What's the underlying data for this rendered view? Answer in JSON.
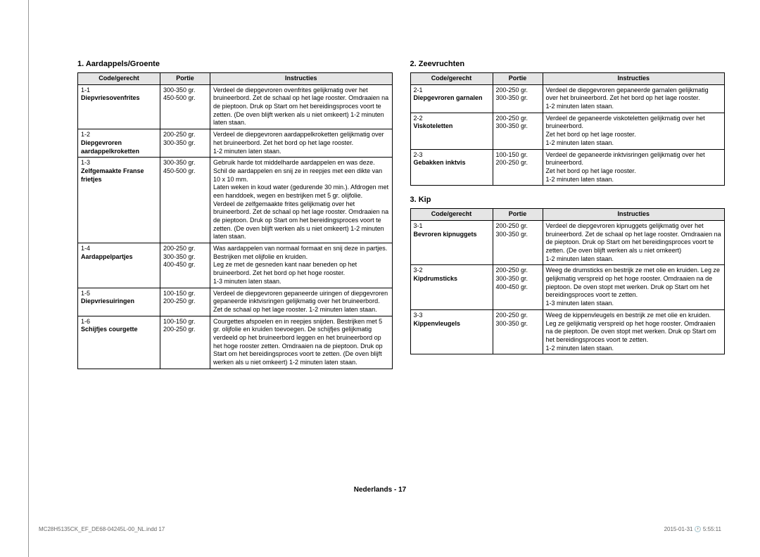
{
  "left": {
    "title": "1. Aardappels/Groente",
    "headers": {
      "c": "Code/gerecht",
      "p": "Portie",
      "i": "Instructies"
    },
    "rows": [
      {
        "code": "1-1",
        "name": "Diepvriesovenfrites",
        "portie": "300-350 gr.\n450-500 gr.",
        "instr": "Verdeel de diepgevroren ovenfrites gelijkmatig over het bruineerbord. Zet de schaal op het lage rooster. Omdraaien na de pieptoon. Druk op Start om het bereidingsproces voort te zetten. (De oven blijft werken als u niet omkeert) 1-2 minuten laten staan."
      },
      {
        "code": "1-2",
        "name": "Diepgevroren aardappelkroketten",
        "portie": "200-250 gr.\n300-350 gr.",
        "instr": "Verdeel de diepgevroren aardappelkroketten gelijkmatig over het bruineerbord. Zet het bord op het lage rooster.\n1-2 minuten laten staan."
      },
      {
        "code": "1-3",
        "name": "Zelfgemaakte Franse frietjes",
        "portie": "300-350 gr.\n450-500 gr.",
        "instr": "Gebruik harde tot middelharde aardappelen en was deze. Schil de aardappelen en snij ze in reepjes met een dikte van 10 x 10 mm.\nLaten weken in koud water (gedurende 30 min.). Afdrogen met een handdoek, wegen en bestrijken met 5 gr. olijfolie.\nVerdeel de zelfgemaakte frites gelijkmatig over het bruineerbord. Zet de schaal op het lage rooster. Omdraaien na de pieptoon. Druk op Start om het bereidingsproces voort te zetten. (De oven blijft werken als u niet omkeert) 1-2 minuten laten staan."
      },
      {
        "code": "1-4",
        "name": "Aardappelpartjes",
        "portie": "200-250 gr.\n300-350 gr.\n400-450 gr.",
        "instr": "Was aardappelen van normaal formaat en snij deze in partjes. Bestrijken met olijfolie en kruiden.\nLeg ze met de gesneden kant naar beneden op het bruineerbord. Zet het bord op het hoge rooster.\n1-3 minuten laten staan."
      },
      {
        "code": "1-5",
        "name": "Diepvriesuiringen",
        "portie": "100-150 gr.\n200-250 gr.",
        "instr": "Verdeel de diepgevroren gepaneerde uiringen of diepgevroren gepaneerde inktvisringen gelijkmatig over het bruineerbord. Zet de schaal op het lage rooster. 1-2 minuten laten staan."
      },
      {
        "code": "1-6",
        "name": "Schijfjes courgette",
        "portie": "100-150 gr.\n200-250 gr.",
        "instr": "Courgettes afspoelen en in reepjes snijden. Bestrijken met 5 gr. olijfolie en kruiden toevoegen. De schijfjes gelijkmatig verdeeld op het bruineerbord leggen en het bruineerbord op het hoge rooster zetten. Omdraaien na de pieptoon. Druk op Start om het bereidingsproces voort te zetten. (De oven blijft werken als u niet omkeert) 1-2 minuten laten staan."
      }
    ]
  },
  "right": {
    "s2": {
      "title": "2. Zeevruchten",
      "headers": {
        "c": "Code/gerecht",
        "p": "Portie",
        "i": "Instructies"
      },
      "rows": [
        {
          "code": "2-1",
          "name": "Diepgevroren garnalen",
          "portie": "200-250 gr.\n300-350 gr.",
          "instr": "Verdeel de diepgevroren gepaneerde garnalen gelijkmatig over het bruineerbord. Zet het bord op het lage rooster.\n1-2 minuten laten staan."
        },
        {
          "code": "2-2",
          "name": "Viskoteletten",
          "portie": "200-250 gr.\n300-350 gr.",
          "instr": "Verdeel de gepaneerde viskoteletten gelijkmatig over het bruineerbord.\nZet het bord op het lage rooster.\n1-2 minuten laten staan."
        },
        {
          "code": "2-3",
          "name": "Gebakken inktvis",
          "portie": "100-150 gr.\n200-250 gr.",
          "instr": "Verdeel de gepaneerde inktvisringen gelijkmatig over het bruineerbord.\nZet het bord op het lage rooster.\n1-2 minuten laten staan."
        }
      ]
    },
    "s3": {
      "title": "3. Kip",
      "headers": {
        "c": "Code/gerecht",
        "p": "Portie",
        "i": "Instructies"
      },
      "rows": [
        {
          "code": "3-1",
          "name": "Bevroren kipnuggets",
          "portie": "200-250 gr.\n300-350 gr.",
          "instr": "Verdeel de diepgevroren kipnuggets gelijkmatig over het bruineerbord. Zet de schaal op het lage rooster. Omdraaien na de pieptoon. Druk op Start om het bereidingsproces voort te zetten. (De oven blijft werken als u niet omkeert)\n1-2 minuten laten staan."
        },
        {
          "code": "3-2",
          "name": "Kipdrumsticks",
          "portie": "200-250 gr.\n300-350 gr.\n400-450 gr.",
          "instr": "Weeg de drumsticks en bestrijk ze met olie en kruiden. Leg ze gelijkmatig verspreid op het hoge rooster. Omdraaien na de pieptoon. De oven stopt met werken. Druk op Start om het bereidingsproces voort te zetten.\n1-3 minuten laten staan."
        },
        {
          "code": "3-3",
          "name": "Kippenvleugels",
          "portie": "200-250 gr.\n300-350 gr.",
          "instr": "Weeg de kippenvleugels en bestrijk ze met olie en kruiden. Leg ze gelijkmatig verspreid op het hoge rooster. Omdraaien na de pieptoon. De oven stopt met werken. Druk op Start om het bereidingsproces voort te zetten.\n1-2 minuten laten staan."
        }
      ]
    }
  },
  "footer": "Nederlands - 17",
  "print": {
    "left": "MC28H5135CK_EF_DE68-04245L-00_NL.indd   17",
    "right": "2015-01-31   🕐 5:55:11"
  }
}
